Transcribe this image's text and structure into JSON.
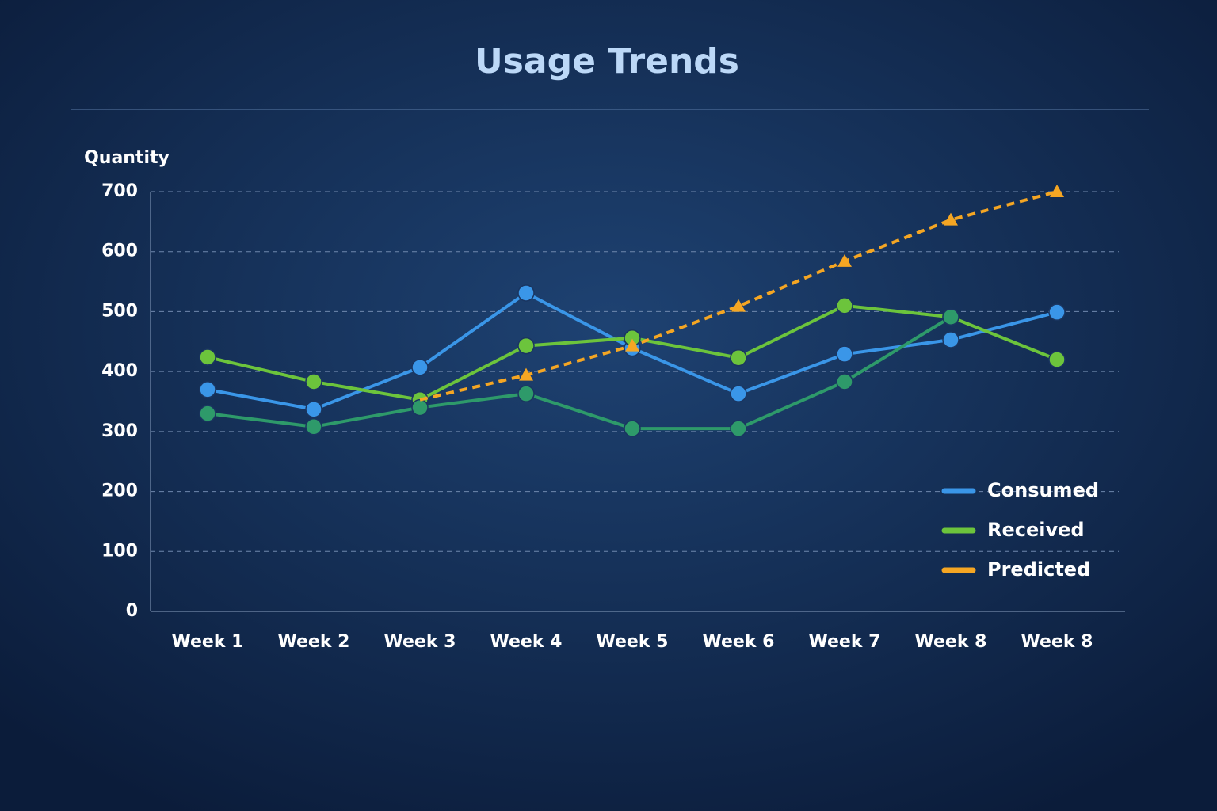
{
  "chart_data": {
    "type": "line",
    "title": "Usage Trends",
    "y_label": "Quantity",
    "categories": [
      "Week 1",
      "Week 2",
      "Week 3",
      "Week 4",
      "Week 5",
      "Week 6",
      "Week 7",
      "Week 8",
      "Week 8"
    ],
    "series": [
      {
        "name": "Consumed",
        "color": "#3a96e8",
        "values": [
          370,
          337,
          407,
          531,
          439,
          363,
          429,
          453,
          499
        ]
      },
      {
        "name": "Received",
        "color": "#6cc43c",
        "values": [
          424,
          383,
          353,
          443,
          456,
          423,
          510,
          491,
          420
        ]
      },
      {
        "color": "#2e9a6a",
        "values": [
          330,
          308,
          340,
          363,
          305,
          305,
          383,
          491,
          null
        ]
      },
      {
        "name": "Predicted",
        "color": "#f5a623",
        "dashed": true,
        "values": [
          null,
          null,
          353,
          394,
          443,
          509,
          584,
          653,
          700
        ]
      }
    ],
    "ylim": [
      0,
      700
    ],
    "yticks": [
      0,
      100,
      200,
      300,
      400,
      500,
      600,
      700
    ],
    "grid": true,
    "legend": "lower right"
  }
}
